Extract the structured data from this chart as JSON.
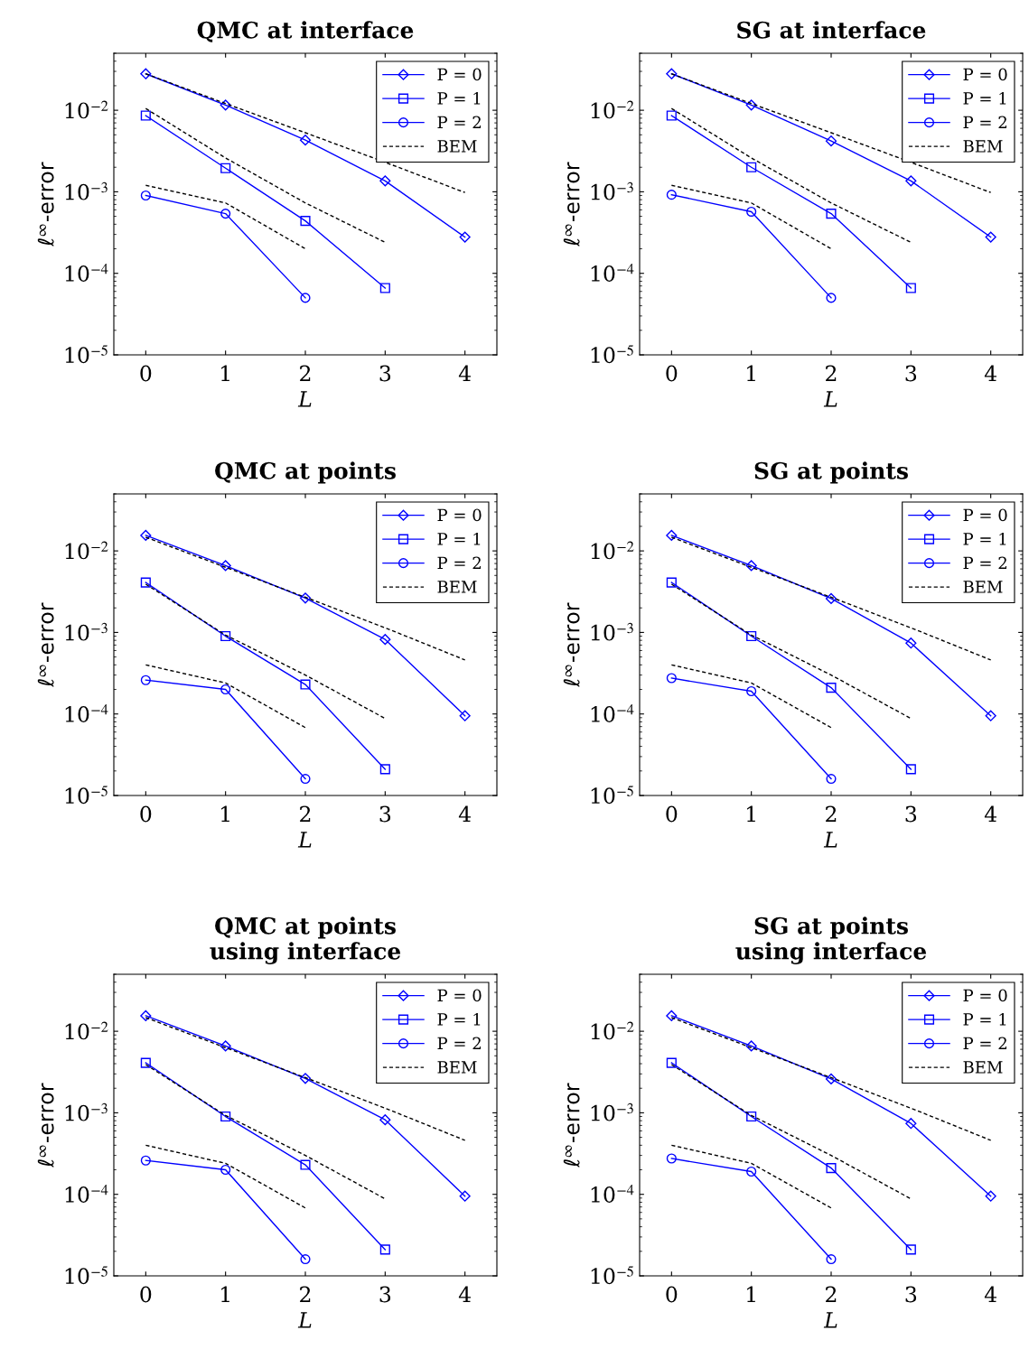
{
  "chart_data": [
    {
      "type": "line",
      "title": "QMC at interface",
      "xlabel": "L",
      "ylabel": "ℓ$^{∞}$-error",
      "log": "y",
      "xlim": [
        -0.4,
        4.4
      ],
      "xticks": [
        0,
        1,
        2,
        3,
        4
      ],
      "ylim": [
        1e-05,
        0.05
      ],
      "yticks": [
        {
          "value": 1e-05,
          "label": "10$^{−5}$"
        },
        {
          "value": 0.0001,
          "label": "10$^{−4}$"
        },
        {
          "value": 0.001,
          "label": "10$^{−3}$"
        },
        {
          "value": 0.01,
          "label": "10$^{−2}$"
        }
      ],
      "legend": "top right",
      "grid": false,
      "series": [
        {
          "name": "P = 0",
          "color": "#0000ff",
          "marker": "diamond",
          "line_style": "solid",
          "x": [
            0,
            1,
            2,
            3,
            4
          ],
          "values": [
            0.028,
            0.0116,
            0.0043,
            0.00136,
            0.000278
          ]
        },
        {
          "name": "P = 1",
          "color": "#0000ff",
          "marker": "square",
          "line_style": "solid",
          "x": [
            0,
            1,
            2,
            3
          ],
          "values": [
            0.0086,
            0.00195,
            0.00044,
            6.6e-05
          ]
        },
        {
          "name": "P = 2",
          "color": "#0000ff",
          "marker": "circle",
          "line_style": "solid",
          "x": [
            0,
            1,
            2
          ],
          "values": [
            0.0009,
            0.00054,
            5e-05
          ]
        },
        {
          "name": "BEM",
          "color": "#000000",
          "marker": "none",
          "line_style": "dashed",
          "x": [
            0,
            1,
            2,
            3,
            4
          ],
          "values": [
            0.028,
            0.0121,
            0.0053,
            0.0023,
            0.00098
          ]
        },
        {
          "color": "#000000",
          "marker": "none",
          "line_style": "dashed",
          "x": [
            0,
            1,
            2,
            3
          ],
          "values": [
            0.0105,
            0.0026,
            0.00073,
            0.00024
          ]
        },
        {
          "color": "#000000",
          "marker": "none",
          "line_style": "dashed",
          "x": [
            0,
            1,
            2
          ],
          "values": [
            0.0012,
            0.00073,
            0.0002
          ]
        }
      ]
    },
    {
      "type": "line",
      "title": "SG at interface",
      "xlabel": "L",
      "ylabel": "ℓ$^{∞}$-error",
      "log": "y",
      "xlim": [
        -0.4,
        4.4
      ],
      "xticks": [
        0,
        1,
        2,
        3,
        4
      ],
      "ylim": [
        1e-05,
        0.05
      ],
      "yticks": [
        {
          "value": 1e-05,
          "label": "10$^{−5}$"
        },
        {
          "value": 0.0001,
          "label": "10$^{−4}$"
        },
        {
          "value": 0.001,
          "label": "10$^{−3}$"
        },
        {
          "value": 0.01,
          "label": "10$^{−2}$"
        }
      ],
      "legend": "top right",
      "grid": false,
      "series": [
        {
          "name": "P = 0",
          "color": "#0000ff",
          "marker": "diamond",
          "line_style": "solid",
          "x": [
            0,
            1,
            2,
            3,
            4
          ],
          "values": [
            0.028,
            0.0116,
            0.0042,
            0.00136,
            0.000278
          ]
        },
        {
          "name": "P = 1",
          "color": "#0000ff",
          "marker": "square",
          "line_style": "solid",
          "x": [
            0,
            1,
            2,
            3
          ],
          "values": [
            0.0086,
            0.002,
            0.00054,
            6.6e-05
          ]
        },
        {
          "name": "P = 2",
          "color": "#0000ff",
          "marker": "circle",
          "line_style": "solid",
          "x": [
            0,
            1,
            2
          ],
          "values": [
            0.00092,
            0.00057,
            5e-05
          ]
        },
        {
          "name": "BEM",
          "color": "#000000",
          "marker": "none",
          "line_style": "dashed",
          "x": [
            0,
            1,
            2,
            3,
            4
          ],
          "values": [
            0.028,
            0.0121,
            0.0053,
            0.0023,
            0.00098
          ]
        },
        {
          "color": "#000000",
          "marker": "none",
          "line_style": "dashed",
          "x": [
            0,
            1,
            2,
            3
          ],
          "values": [
            0.0105,
            0.0026,
            0.00073,
            0.00024
          ]
        },
        {
          "color": "#000000",
          "marker": "none",
          "line_style": "dashed",
          "x": [
            0,
            1,
            2
          ],
          "values": [
            0.0012,
            0.00073,
            0.0002
          ]
        }
      ]
    },
    {
      "type": "line",
      "title": "QMC at points",
      "xlabel": "L",
      "ylabel": "ℓ$^{∞}$-error",
      "log": "y",
      "xlim": [
        -0.4,
        4.4
      ],
      "xticks": [
        0,
        1,
        2,
        3,
        4
      ],
      "ylim": [
        1e-05,
        0.05
      ],
      "yticks": [
        {
          "value": 1e-05,
          "label": "10$^{−5}$"
        },
        {
          "value": 0.0001,
          "label": "10$^{−4}$"
        },
        {
          "value": 0.001,
          "label": "10$^{−3}$"
        },
        {
          "value": 0.01,
          "label": "10$^{−2}$"
        }
      ],
      "legend": "top right",
      "grid": false,
      "series": [
        {
          "name": "P = 0",
          "color": "#0000ff",
          "marker": "diamond",
          "line_style": "solid",
          "x": [
            0,
            1,
            2,
            3,
            4
          ],
          "values": [
            0.0155,
            0.0066,
            0.00264,
            0.00082,
            9.5e-05
          ]
        },
        {
          "name": "P = 1",
          "color": "#0000ff",
          "marker": "square",
          "line_style": "solid",
          "x": [
            0,
            1,
            2,
            3
          ],
          "values": [
            0.0041,
            0.0009,
            0.00023,
            2.1e-05
          ]
        },
        {
          "name": "P = 2",
          "color": "#0000ff",
          "marker": "circle",
          "line_style": "solid",
          "x": [
            0,
            1,
            2
          ],
          "values": [
            0.00026,
            0.0002,
            1.6e-05
          ]
        },
        {
          "name": "BEM",
          "color": "#000000",
          "marker": "none",
          "line_style": "dashed",
          "x": [
            0,
            1,
            2,
            3,
            4
          ],
          "values": [
            0.0147,
            0.0063,
            0.0027,
            0.00114,
            0.00046
          ]
        },
        {
          "color": "#000000",
          "marker": "none",
          "line_style": "dashed",
          "x": [
            0,
            1,
            2,
            3
          ],
          "values": [
            0.0039,
            0.00093,
            0.0003,
            8.8e-05
          ]
        },
        {
          "color": "#000000",
          "marker": "none",
          "line_style": "dashed",
          "x": [
            0,
            1,
            2
          ],
          "values": [
            0.0004,
            0.00024,
            6.8e-05
          ]
        }
      ]
    },
    {
      "type": "line",
      "title": "SG at points",
      "xlabel": "L",
      "ylabel": "ℓ$^{∞}$-error",
      "log": "y",
      "xlim": [
        -0.4,
        4.4
      ],
      "xticks": [
        0,
        1,
        2,
        3,
        4
      ],
      "ylim": [
        1e-05,
        0.05
      ],
      "yticks": [
        {
          "value": 1e-05,
          "label": "10$^{−5}$"
        },
        {
          "value": 0.0001,
          "label": "10$^{−4}$"
        },
        {
          "value": 0.001,
          "label": "10$^{−3}$"
        },
        {
          "value": 0.01,
          "label": "10$^{−2}$"
        }
      ],
      "legend": "top right",
      "grid": false,
      "series": [
        {
          "name": "P = 0",
          "color": "#0000ff",
          "marker": "diamond",
          "line_style": "solid",
          "x": [
            0,
            1,
            2,
            3,
            4
          ],
          "values": [
            0.0155,
            0.0066,
            0.0026,
            0.00074,
            9.5e-05
          ]
        },
        {
          "name": "P = 1",
          "color": "#0000ff",
          "marker": "square",
          "line_style": "solid",
          "x": [
            0,
            1,
            2,
            3
          ],
          "values": [
            0.0041,
            0.0009,
            0.00021,
            2.1e-05
          ]
        },
        {
          "name": "P = 2",
          "color": "#0000ff",
          "marker": "circle",
          "line_style": "solid",
          "x": [
            0,
            1,
            2
          ],
          "values": [
            0.000275,
            0.00019,
            1.6e-05
          ]
        },
        {
          "name": "BEM",
          "color": "#000000",
          "marker": "none",
          "line_style": "dashed",
          "x": [
            0,
            1,
            2,
            3,
            4
          ],
          "values": [
            0.0147,
            0.0063,
            0.0027,
            0.00114,
            0.00046
          ]
        },
        {
          "color": "#000000",
          "marker": "none",
          "line_style": "dashed",
          "x": [
            0,
            1,
            2,
            3
          ],
          "values": [
            0.0039,
            0.00093,
            0.0003,
            8.8e-05
          ]
        },
        {
          "color": "#000000",
          "marker": "none",
          "line_style": "dashed",
          "x": [
            0,
            1,
            2
          ],
          "values": [
            0.0004,
            0.00024,
            6.8e-05
          ]
        }
      ]
    },
    {
      "type": "line",
      "title": "QMC at points\nusing interface",
      "xlabel": "L",
      "ylabel": "ℓ$^{∞}$-error",
      "log": "y",
      "xlim": [
        -0.4,
        4.4
      ],
      "xticks": [
        0,
        1,
        2,
        3,
        4
      ],
      "ylim": [
        1e-05,
        0.05
      ],
      "yticks": [
        {
          "value": 1e-05,
          "label": "10$^{−5}$"
        },
        {
          "value": 0.0001,
          "label": "10$^{−4}$"
        },
        {
          "value": 0.001,
          "label": "10$^{−3}$"
        },
        {
          "value": 0.01,
          "label": "10$^{−2}$"
        }
      ],
      "legend": "top right",
      "grid": false,
      "series": [
        {
          "name": "P = 0",
          "color": "#0000ff",
          "marker": "diamond",
          "line_style": "solid",
          "x": [
            0,
            1,
            2,
            3,
            4
          ],
          "values": [
            0.0155,
            0.0066,
            0.00264,
            0.00082,
            9.5e-05
          ]
        },
        {
          "name": "P = 1",
          "color": "#0000ff",
          "marker": "square",
          "line_style": "solid",
          "x": [
            0,
            1,
            2,
            3
          ],
          "values": [
            0.0041,
            0.0009,
            0.00023,
            2.1e-05
          ]
        },
        {
          "name": "P = 2",
          "color": "#0000ff",
          "marker": "circle",
          "line_style": "solid",
          "x": [
            0,
            1,
            2
          ],
          "values": [
            0.00026,
            0.0002,
            1.6e-05
          ]
        },
        {
          "name": "BEM",
          "color": "#000000",
          "marker": "none",
          "line_style": "dashed",
          "x": [
            0,
            1,
            2,
            3,
            4
          ],
          "values": [
            0.0147,
            0.0063,
            0.0027,
            0.00114,
            0.00046
          ]
        },
        {
          "color": "#000000",
          "marker": "none",
          "line_style": "dashed",
          "x": [
            0,
            1,
            2,
            3
          ],
          "values": [
            0.0039,
            0.00093,
            0.0003,
            8.8e-05
          ]
        },
        {
          "color": "#000000",
          "marker": "none",
          "line_style": "dashed",
          "x": [
            0,
            1,
            2
          ],
          "values": [
            0.0004,
            0.00024,
            6.8e-05
          ]
        }
      ]
    },
    {
      "type": "line",
      "title": "SG at points\nusing interface",
      "xlabel": "L",
      "ylabel": "ℓ$^{∞}$-error",
      "log": "y",
      "xlim": [
        -0.4,
        4.4
      ],
      "xticks": [
        0,
        1,
        2,
        3,
        4
      ],
      "ylim": [
        1e-05,
        0.05
      ],
      "yticks": [
        {
          "value": 1e-05,
          "label": "10$^{−5}$"
        },
        {
          "value": 0.0001,
          "label": "10$^{−4}$"
        },
        {
          "value": 0.001,
          "label": "10$^{−3}$"
        },
        {
          "value": 0.01,
          "label": "10$^{−2}$"
        }
      ],
      "legend": "top right",
      "grid": false,
      "series": [
        {
          "name": "P = 0",
          "color": "#0000ff",
          "marker": "diamond",
          "line_style": "solid",
          "x": [
            0,
            1,
            2,
            3,
            4
          ],
          "values": [
            0.0155,
            0.0066,
            0.0026,
            0.00074,
            9.5e-05
          ]
        },
        {
          "name": "P = 1",
          "color": "#0000ff",
          "marker": "square",
          "line_style": "solid",
          "x": [
            0,
            1,
            2,
            3
          ],
          "values": [
            0.0041,
            0.0009,
            0.00021,
            2.1e-05
          ]
        },
        {
          "name": "P = 2",
          "color": "#0000ff",
          "marker": "circle",
          "line_style": "solid",
          "x": [
            0,
            1,
            2
          ],
          "values": [
            0.000275,
            0.00019,
            1.6e-05
          ]
        },
        {
          "name": "BEM",
          "color": "#000000",
          "marker": "none",
          "line_style": "dashed",
          "x": [
            0,
            1,
            2,
            3,
            4
          ],
          "values": [
            0.0147,
            0.0063,
            0.0027,
            0.00114,
            0.00046
          ]
        },
        {
          "color": "#000000",
          "marker": "none",
          "line_style": "dashed",
          "x": [
            0,
            1,
            2,
            3
          ],
          "values": [
            0.0039,
            0.00093,
            0.0003,
            8.8e-05
          ]
        },
        {
          "color": "#000000",
          "marker": "none",
          "line_style": "dashed",
          "x": [
            0,
            1,
            2
          ],
          "values": [
            0.0004,
            0.00024,
            6.8e-05
          ]
        }
      ]
    }
  ]
}
